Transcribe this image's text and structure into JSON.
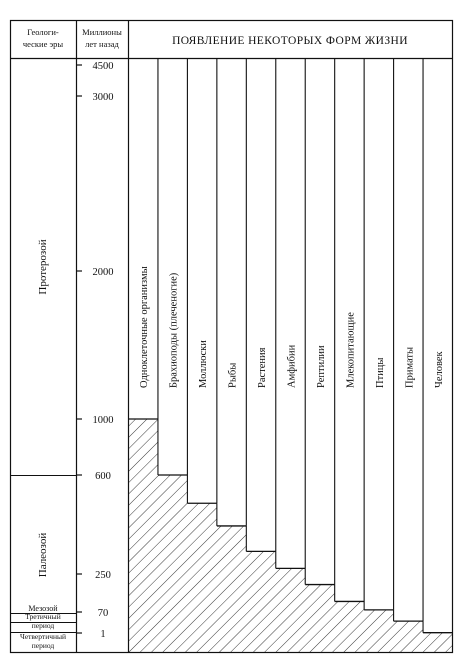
{
  "header": {
    "eras_title_line1": "Геологи-",
    "eras_title_line2": "ческие эры",
    "years_title_line1": "Миллионы",
    "years_title_line2": "лет назад",
    "forms_title": "ПОЯВЛЕНИЕ НЕКОТОРЫХ ФОРМ ЖИЗНИ"
  },
  "eras": [
    {
      "name": "Протерозой"
    },
    {
      "name": "Палеозой"
    },
    {
      "name": "Мезозой"
    },
    {
      "name": "Третичный период"
    },
    {
      "name": "Четвертичный период"
    }
  ],
  "era_labels": {
    "tertiary_line1": "Третичный",
    "tertiary_line2": "период",
    "quaternary_line1": "Четвертичный",
    "quaternary_line2": "период"
  },
  "time_ticks": [
    "4500",
    "3000",
    "2000",
    "1000",
    "600",
    "250",
    "70",
    "1"
  ],
  "life_forms": [
    {
      "name": "Одноклеточные организмы",
      "appeared_mya": 1000
    },
    {
      "name": "Брахиоподы (плеченогие)",
      "appeared_mya": 600
    },
    {
      "name": "Моллюски",
      "appeared_mya": 500
    },
    {
      "name": "Рыбы",
      "appeared_mya": 420
    },
    {
      "name": "Растения",
      "appeared_mya": 330
    },
    {
      "name": "Амфибии",
      "appeared_mya": 270
    },
    {
      "name": "Рептилии",
      "appeared_mya": 200
    },
    {
      "name": "Млекопитающие",
      "appeared_mya": 120
    },
    {
      "name": "Птицы",
      "appeared_mya": 80
    },
    {
      "name": "Приматы",
      "appeared_mya": 40
    },
    {
      "name": "Человек",
      "appeared_mya": 2
    }
  ]
}
